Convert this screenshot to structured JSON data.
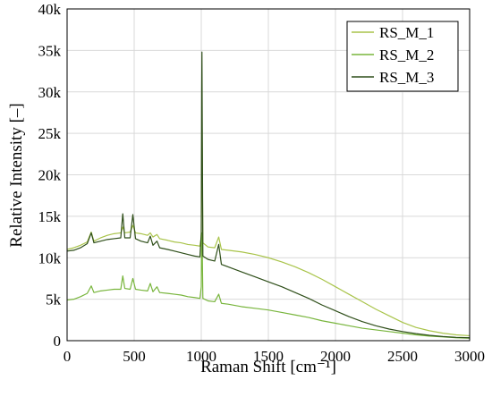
{
  "chart_data": {
    "type": "line",
    "title": "",
    "xlabel": "Raman Shift [cm⁻¹]",
    "ylabel": "Relative Intensity [–]",
    "xlim": [
      0,
      3000
    ],
    "ylim": [
      0,
      40000
    ],
    "x_ticks": [
      0,
      500,
      1000,
      1500,
      2000,
      2500,
      3000
    ],
    "x_tick_labels": [
      "0",
      "500",
      "1000",
      "1500",
      "2000",
      "2500",
      "3000"
    ],
    "y_ticks": [
      0,
      5000,
      10000,
      15000,
      20000,
      25000,
      30000,
      35000,
      40000
    ],
    "y_tick_labels": [
      "0",
      "5k",
      "10k",
      "15k",
      "20k",
      "25k",
      "30k",
      "35k",
      "40k"
    ],
    "grid": true,
    "legend_position": "top-right",
    "series": [
      {
        "name": "RS_M_1",
        "color": "#a9c44a",
        "points": [
          [
            0,
            11000
          ],
          [
            50,
            11200
          ],
          [
            100,
            11500
          ],
          [
            150,
            11900
          ],
          [
            180,
            13100
          ],
          [
            200,
            12000
          ],
          [
            250,
            12400
          ],
          [
            300,
            12700
          ],
          [
            350,
            12900
          ],
          [
            400,
            13000
          ],
          [
            415,
            13700
          ],
          [
            430,
            13000
          ],
          [
            470,
            13100
          ],
          [
            490,
            13900
          ],
          [
            510,
            13000
          ],
          [
            550,
            12900
          ],
          [
            600,
            12700
          ],
          [
            620,
            13000
          ],
          [
            640,
            12500
          ],
          [
            670,
            12800
          ],
          [
            690,
            12300
          ],
          [
            750,
            12100
          ],
          [
            800,
            11900
          ],
          [
            850,
            11800
          ],
          [
            900,
            11600
          ],
          [
            950,
            11500
          ],
          [
            990,
            11400
          ],
          [
            1000,
            12500
          ],
          [
            1003,
            22000
          ],
          [
            1005,
            29000
          ],
          [
            1008,
            20000
          ],
          [
            1012,
            11800
          ],
          [
            1050,
            11300
          ],
          [
            1100,
            11200
          ],
          [
            1130,
            12500
          ],
          [
            1150,
            11000
          ],
          [
            1200,
            10900
          ],
          [
            1300,
            10700
          ],
          [
            1400,
            10400
          ],
          [
            1500,
            10000
          ],
          [
            1600,
            9500
          ],
          [
            1700,
            8900
          ],
          [
            1800,
            8200
          ],
          [
            1900,
            7400
          ],
          [
            2000,
            6500
          ],
          [
            2100,
            5600
          ],
          [
            2200,
            4700
          ],
          [
            2300,
            3800
          ],
          [
            2400,
            3000
          ],
          [
            2500,
            2200
          ],
          [
            2600,
            1600
          ],
          [
            2700,
            1200
          ],
          [
            2800,
            900
          ],
          [
            2900,
            700
          ],
          [
            3000,
            600
          ]
        ]
      },
      {
        "name": "RS_M_2",
        "color": "#78b53c",
        "points": [
          [
            0,
            4900
          ],
          [
            50,
            5000
          ],
          [
            100,
            5300
          ],
          [
            150,
            5700
          ],
          [
            180,
            6600
          ],
          [
            200,
            5800
          ],
          [
            250,
            6000
          ],
          [
            300,
            6100
          ],
          [
            350,
            6200
          ],
          [
            400,
            6200
          ],
          [
            415,
            7800
          ],
          [
            430,
            6300
          ],
          [
            470,
            6200
          ],
          [
            490,
            7500
          ],
          [
            510,
            6200
          ],
          [
            550,
            6100
          ],
          [
            600,
            6000
          ],
          [
            620,
            6900
          ],
          [
            640,
            5900
          ],
          [
            670,
            6500
          ],
          [
            690,
            5800
          ],
          [
            750,
            5700
          ],
          [
            800,
            5600
          ],
          [
            850,
            5500
          ],
          [
            900,
            5300
          ],
          [
            950,
            5200
          ],
          [
            990,
            5100
          ],
          [
            1000,
            6500
          ],
          [
            1003,
            12500
          ],
          [
            1005,
            13000
          ],
          [
            1008,
            10000
          ],
          [
            1012,
            5100
          ],
          [
            1050,
            4800
          ],
          [
            1100,
            4700
          ],
          [
            1130,
            5600
          ],
          [
            1150,
            4500
          ],
          [
            1200,
            4400
          ],
          [
            1300,
            4100
          ],
          [
            1400,
            3900
          ],
          [
            1500,
            3700
          ],
          [
            1600,
            3400
          ],
          [
            1700,
            3100
          ],
          [
            1800,
            2800
          ],
          [
            1900,
            2400
          ],
          [
            2000,
            2100
          ],
          [
            2100,
            1800
          ],
          [
            2200,
            1500
          ],
          [
            2300,
            1300
          ],
          [
            2400,
            1100
          ],
          [
            2500,
            900
          ],
          [
            2600,
            700
          ],
          [
            2700,
            550
          ],
          [
            2800,
            450
          ],
          [
            2900,
            350
          ],
          [
            3000,
            300
          ]
        ]
      },
      {
        "name": "RS_M_3",
        "color": "#2f4f1a",
        "points": [
          [
            0,
            10800
          ],
          [
            50,
            10900
          ],
          [
            100,
            11200
          ],
          [
            150,
            11700
          ],
          [
            180,
            13000
          ],
          [
            200,
            11800
          ],
          [
            250,
            12000
          ],
          [
            300,
            12200
          ],
          [
            350,
            12300
          ],
          [
            400,
            12400
          ],
          [
            415,
            15300
          ],
          [
            430,
            12400
          ],
          [
            470,
            12400
          ],
          [
            490,
            15200
          ],
          [
            510,
            12300
          ],
          [
            550,
            12000
          ],
          [
            600,
            11800
          ],
          [
            620,
            12600
          ],
          [
            640,
            11500
          ],
          [
            670,
            12000
          ],
          [
            690,
            11200
          ],
          [
            750,
            11000
          ],
          [
            800,
            10800
          ],
          [
            850,
            10600
          ],
          [
            900,
            10400
          ],
          [
            950,
            10200
          ],
          [
            990,
            10100
          ],
          [
            1000,
            13000
          ],
          [
            1003,
            30000
          ],
          [
            1005,
            34800
          ],
          [
            1008,
            24000
          ],
          [
            1012,
            10200
          ],
          [
            1050,
            9800
          ],
          [
            1100,
            9600
          ],
          [
            1130,
            11600
          ],
          [
            1150,
            9200
          ],
          [
            1200,
            8900
          ],
          [
            1300,
            8300
          ],
          [
            1400,
            7700
          ],
          [
            1500,
            7100
          ],
          [
            1600,
            6500
          ],
          [
            1700,
            5800
          ],
          [
            1800,
            5100
          ],
          [
            1900,
            4300
          ],
          [
            2000,
            3600
          ],
          [
            2100,
            2900
          ],
          [
            2200,
            2300
          ],
          [
            2300,
            1800
          ],
          [
            2400,
            1400
          ],
          [
            2500,
            1100
          ],
          [
            2600,
            850
          ],
          [
            2700,
            650
          ],
          [
            2800,
            500
          ],
          [
            2900,
            400
          ],
          [
            3000,
            350
          ]
        ]
      }
    ]
  }
}
